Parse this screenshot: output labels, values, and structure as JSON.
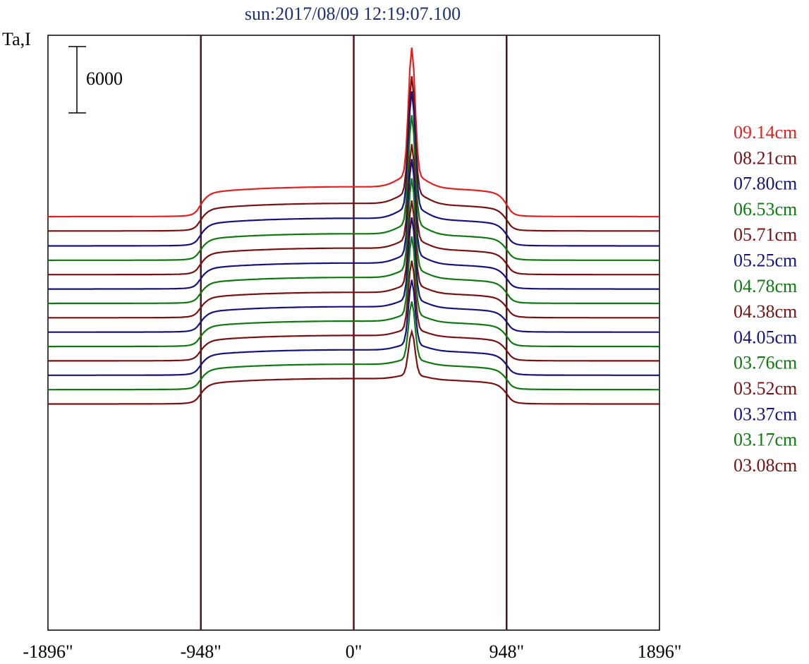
{
  "chart_data": {
    "type": "line",
    "title": "sun:2017/08/09 12:19:07.100",
    "ylabel": "Ta,I",
    "xlim": [
      -1896,
      1896
    ],
    "x_ticks": [
      "-1896\"",
      "-948\"",
      "0\"",
      "948\"",
      "1896\""
    ],
    "reference_lines_x": [
      -948,
      0,
      948
    ],
    "scale_bar_label": "6000",
    "scale_bar_value": 6000,
    "grid": false,
    "legend_position": "right",
    "series": [
      {
        "name": "09.14cm",
        "color": "#e81e1e",
        "offset": 0,
        "limb": 2700,
        "peak": 11500
      },
      {
        "name": "08.21cm",
        "color": "#7a1010",
        "offset": -1300,
        "limb": 2500,
        "peak": 10500
      },
      {
        "name": "07.80cm",
        "color": "#14147f",
        "offset": -2650,
        "limb": 2500,
        "peak": 10500
      },
      {
        "name": "06.53cm",
        "color": "#0d7a0d",
        "offset": -3950,
        "limb": 2400,
        "peak": 9800
      },
      {
        "name": "05.71cm",
        "color": "#7a1010",
        "offset": -5250,
        "limb": 2400,
        "peak": 8600
      },
      {
        "name": "05.25cm",
        "color": "#14147f",
        "offset": -6550,
        "limb": 2350,
        "peak": 8600
      },
      {
        "name": "04.78cm",
        "color": "#0d7a0d",
        "offset": -7850,
        "limb": 2350,
        "peak": 8200
      },
      {
        "name": "04.38cm",
        "color": "#7a1010",
        "offset": -9150,
        "limb": 2300,
        "peak": 7600
      },
      {
        "name": "04.05cm",
        "color": "#14147f",
        "offset": -10450,
        "limb": 2300,
        "peak": 7400
      },
      {
        "name": "03.76cm",
        "color": "#0d7a0d",
        "offset": -11750,
        "limb": 2300,
        "peak": 7000
      },
      {
        "name": "03.52cm",
        "color": "#7a1010",
        "offset": -13050,
        "limb": 2300,
        "peak": 6200
      },
      {
        "name": "03.37cm",
        "color": "#14147f",
        "offset": -14350,
        "limb": 2300,
        "peak": 5800
      },
      {
        "name": "03.17cm",
        "color": "#0d7a0d",
        "offset": -15650,
        "limb": 2300,
        "peak": 5200
      },
      {
        "name": "03.08cm",
        "color": "#7a1010",
        "offset": -16950,
        "limb": 2300,
        "peak": 3900
      }
    ]
  }
}
